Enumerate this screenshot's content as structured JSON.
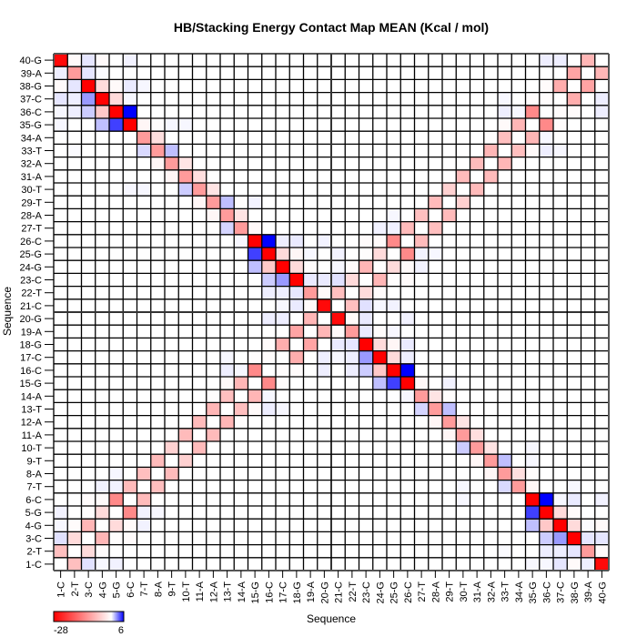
{
  "chart_data": {
    "type": "heatmap",
    "title": "HB/Stacking Energy Contact Map MEAN (Kcal / mol)",
    "xlabel": "Sequence",
    "ylabel": "Sequence",
    "labels": [
      "1-C",
      "2-T",
      "3-C",
      "4-G",
      "5-G",
      "6-C",
      "7-T",
      "8-A",
      "9-T",
      "10-T",
      "11-A",
      "12-A",
      "13-T",
      "14-A",
      "15-G",
      "16-C",
      "17-C",
      "18-G",
      "19-A",
      "20-G",
      "21-C",
      "22-T",
      "23-C",
      "24-G",
      "25-G",
      "26-C",
      "27-T",
      "28-A",
      "29-T",
      "30-T",
      "31-A",
      "32-A",
      "33-T",
      "34-A",
      "35-G",
      "36-C",
      "37-C",
      "38-G",
      "39-A",
      "40-G"
    ],
    "x_order": "1 to 40 left-to-right",
    "y_order": "40 to 1 top-to-bottom",
    "symmetric": true,
    "default_value": 0,
    "colorbar": {
      "min": -28,
      "max": 6,
      "min_label": "-28",
      "max_label": "6",
      "min_color": "#ff0000",
      "zero_color": "#ffffff",
      "max_color": "#0000ff"
    },
    "entries_intra_strand_1": [
      [
        1,
        2,
        -7
      ],
      [
        2,
        3,
        -4
      ],
      [
        3,
        4,
        -8
      ],
      [
        4,
        5,
        -4
      ],
      [
        5,
        6,
        -13
      ],
      [
        6,
        7,
        -7.5
      ],
      [
        7,
        8,
        -7
      ],
      [
        8,
        9,
        -7.5
      ],
      [
        9,
        10,
        -5
      ],
      [
        10,
        11,
        -7.5
      ],
      [
        11,
        12,
        -7.5
      ],
      [
        12,
        13,
        -8
      ],
      [
        13,
        14,
        -7
      ],
      [
        14,
        15,
        -8
      ],
      [
        15,
        16,
        -13
      ],
      [
        16,
        17,
        -0.3
      ],
      [
        17,
        18,
        -9
      ],
      [
        18,
        19,
        -10
      ],
      [
        19,
        20,
        -8
      ],
      [
        16,
        20,
        0.4
      ],
      [
        17,
        20,
        0.4
      ],
      [
        16,
        18,
        -0.4
      ],
      [
        13,
        17,
        0.2
      ],
      [
        15,
        17,
        -0.3
      ],
      [
        13,
        16,
        0.4
      ],
      [
        14,
        16,
        0.2
      ],
      [
        13,
        15,
        -0.5
      ],
      [
        12,
        14,
        -0.2
      ],
      [
        4,
        7,
        0.3
      ],
      [
        4,
        6,
        -0.5
      ],
      [
        5,
        7,
        0.3
      ],
      [
        5,
        8,
        0.2
      ],
      [
        3,
        6,
        -0.4
      ],
      [
        1,
        3,
        0.7
      ],
      [
        3,
        5,
        -0.2
      ],
      [
        2,
        4,
        -0.4
      ],
      [
        1,
        4,
        0.2
      ],
      [
        1,
        5,
        0.3
      ]
    ],
    "entries_intra_strand_2": [
      [
        21,
        22,
        -7
      ],
      [
        22,
        23,
        -4
      ],
      [
        23,
        24,
        -8
      ],
      [
        24,
        25,
        -4
      ],
      [
        25,
        26,
        -13
      ],
      [
        26,
        27,
        -7.5
      ],
      [
        27,
        28,
        -7
      ],
      [
        28,
        29,
        -7.5
      ],
      [
        29,
        30,
        -5
      ],
      [
        30,
        31,
        -7.5
      ],
      [
        31,
        32,
        -7.5
      ],
      [
        32,
        33,
        -8
      ],
      [
        33,
        34,
        -7
      ],
      [
        34,
        35,
        -8
      ],
      [
        35,
        36,
        -13
      ],
      [
        36,
        37,
        -0.3
      ],
      [
        37,
        38,
        -9
      ],
      [
        38,
        39,
        -10
      ],
      [
        39,
        40,
        -8
      ],
      [
        36,
        40,
        0.4
      ],
      [
        37,
        40,
        0.4
      ],
      [
        36,
        38,
        -0.4
      ],
      [
        33,
        37,
        0.2
      ],
      [
        35,
        37,
        -0.3
      ],
      [
        33,
        36,
        0.4
      ],
      [
        34,
        36,
        0.2
      ],
      [
        33,
        35,
        -0.5
      ],
      [
        32,
        34,
        -0.2
      ],
      [
        24,
        27,
        0.3
      ],
      [
        24,
        26,
        -0.5
      ],
      [
        25,
        27,
        0.3
      ],
      [
        25,
        28,
        0.2
      ],
      [
        23,
        26,
        -0.4
      ],
      [
        21,
        23,
        0.7
      ],
      [
        23,
        25,
        -0.2
      ],
      [
        22,
        24,
        -0.4
      ],
      [
        21,
        24,
        0.2
      ],
      [
        21,
        25,
        0.3
      ]
    ],
    "entries_cross_strand": [
      [
        1,
        40,
        -27
      ],
      [
        2,
        40,
        -0.5
      ],
      [
        3,
        40,
        0.6
      ],
      [
        4,
        40,
        -0.5
      ],
      [
        6,
        40,
        0.3
      ],
      [
        1,
        39,
        0.4
      ],
      [
        2,
        39,
        -11
      ],
      [
        3,
        39,
        0.6
      ],
      [
        4,
        39,
        0.1
      ],
      [
        1,
        38,
        -0.6
      ],
      [
        2,
        38,
        0.6
      ],
      [
        3,
        38,
        -28
      ],
      [
        4,
        38,
        -4
      ],
      [
        5,
        38,
        -0.6
      ],
      [
        6,
        38,
        0.5
      ],
      [
        7,
        38,
        0.2
      ],
      [
        1,
        37,
        0.6
      ],
      [
        2,
        37,
        0.4
      ],
      [
        3,
        37,
        2.4
      ],
      [
        4,
        37,
        -28
      ],
      [
        5,
        37,
        -4
      ],
      [
        6,
        37,
        0.2
      ],
      [
        1,
        36,
        0.2
      ],
      [
        2,
        36,
        0.4
      ],
      [
        3,
        36,
        1.2
      ],
      [
        4,
        36,
        -6
      ],
      [
        5,
        36,
        -28
      ],
      [
        6,
        36,
        6
      ],
      [
        1,
        35,
        0.2
      ],
      [
        4,
        35,
        1.5
      ],
      [
        5,
        35,
        4.5
      ],
      [
        6,
        35,
        -28
      ],
      [
        7,
        35,
        -1
      ],
      [
        8,
        35,
        -0.3
      ],
      [
        9,
        35,
        0.2
      ],
      [
        10,
        35,
        0.2
      ],
      [
        7,
        34,
        -11
      ],
      [
        8,
        34,
        -3.5
      ],
      [
        2,
        33,
        0.1
      ],
      [
        7,
        33,
        0.9
      ],
      [
        8,
        33,
        -11
      ],
      [
        9,
        33,
        1.5
      ],
      [
        8,
        32,
        -1
      ],
      [
        9,
        32,
        -11
      ],
      [
        10,
        32,
        -3
      ],
      [
        9,
        31,
        -1
      ],
      [
        10,
        31,
        -11
      ],
      [
        11,
        31,
        -3.5
      ],
      [
        6,
        30,
        0.2
      ],
      [
        7,
        30,
        0.2
      ],
      [
        10,
        30,
        1.2
      ],
      [
        11,
        30,
        -11
      ],
      [
        12,
        30,
        -3
      ],
      [
        11,
        29,
        -1
      ],
      [
        12,
        29,
        -11
      ],
      [
        13,
        29,
        1.5
      ],
      [
        14,
        29,
        -0.2
      ],
      [
        15,
        29,
        0.3
      ],
      [
        12,
        28,
        -1
      ],
      [
        13,
        28,
        -11
      ],
      [
        14,
        28,
        -3
      ],
      [
        13,
        27,
        1
      ],
      [
        14,
        27,
        -11
      ],
      [
        15,
        27,
        -0.8
      ],
      [
        14,
        26,
        0.2
      ],
      [
        15,
        26,
        -28
      ],
      [
        16,
        26,
        6
      ],
      [
        17,
        26,
        0.4
      ],
      [
        18,
        26,
        0.5
      ],
      [
        20,
        26,
        0.3
      ],
      [
        15,
        25,
        4.5
      ],
      [
        16,
        25,
        -28
      ],
      [
        17,
        25,
        -4
      ],
      [
        18,
        25,
        -1
      ],
      [
        19,
        25,
        0.2
      ],
      [
        15,
        24,
        1.5
      ],
      [
        16,
        24,
        -6
      ],
      [
        17,
        24,
        -28
      ],
      [
        18,
        24,
        -4
      ],
      [
        19,
        24,
        -0.3
      ],
      [
        16,
        23,
        1.2
      ],
      [
        17,
        23,
        2.4
      ],
      [
        18,
        23,
        -28
      ],
      [
        19,
        23,
        0.5
      ],
      [
        20,
        23,
        0.5
      ],
      [
        16,
        22,
        0.4
      ],
      [
        17,
        22,
        0.4
      ],
      [
        18,
        22,
        0.6
      ],
      [
        19,
        22,
        -11
      ],
      [
        20,
        22,
        -0.6
      ],
      [
        17,
        21,
        0.2
      ],
      [
        18,
        21,
        0.5
      ],
      [
        19,
        21,
        -0.6
      ],
      [
        20,
        21,
        -27
      ]
    ]
  }
}
